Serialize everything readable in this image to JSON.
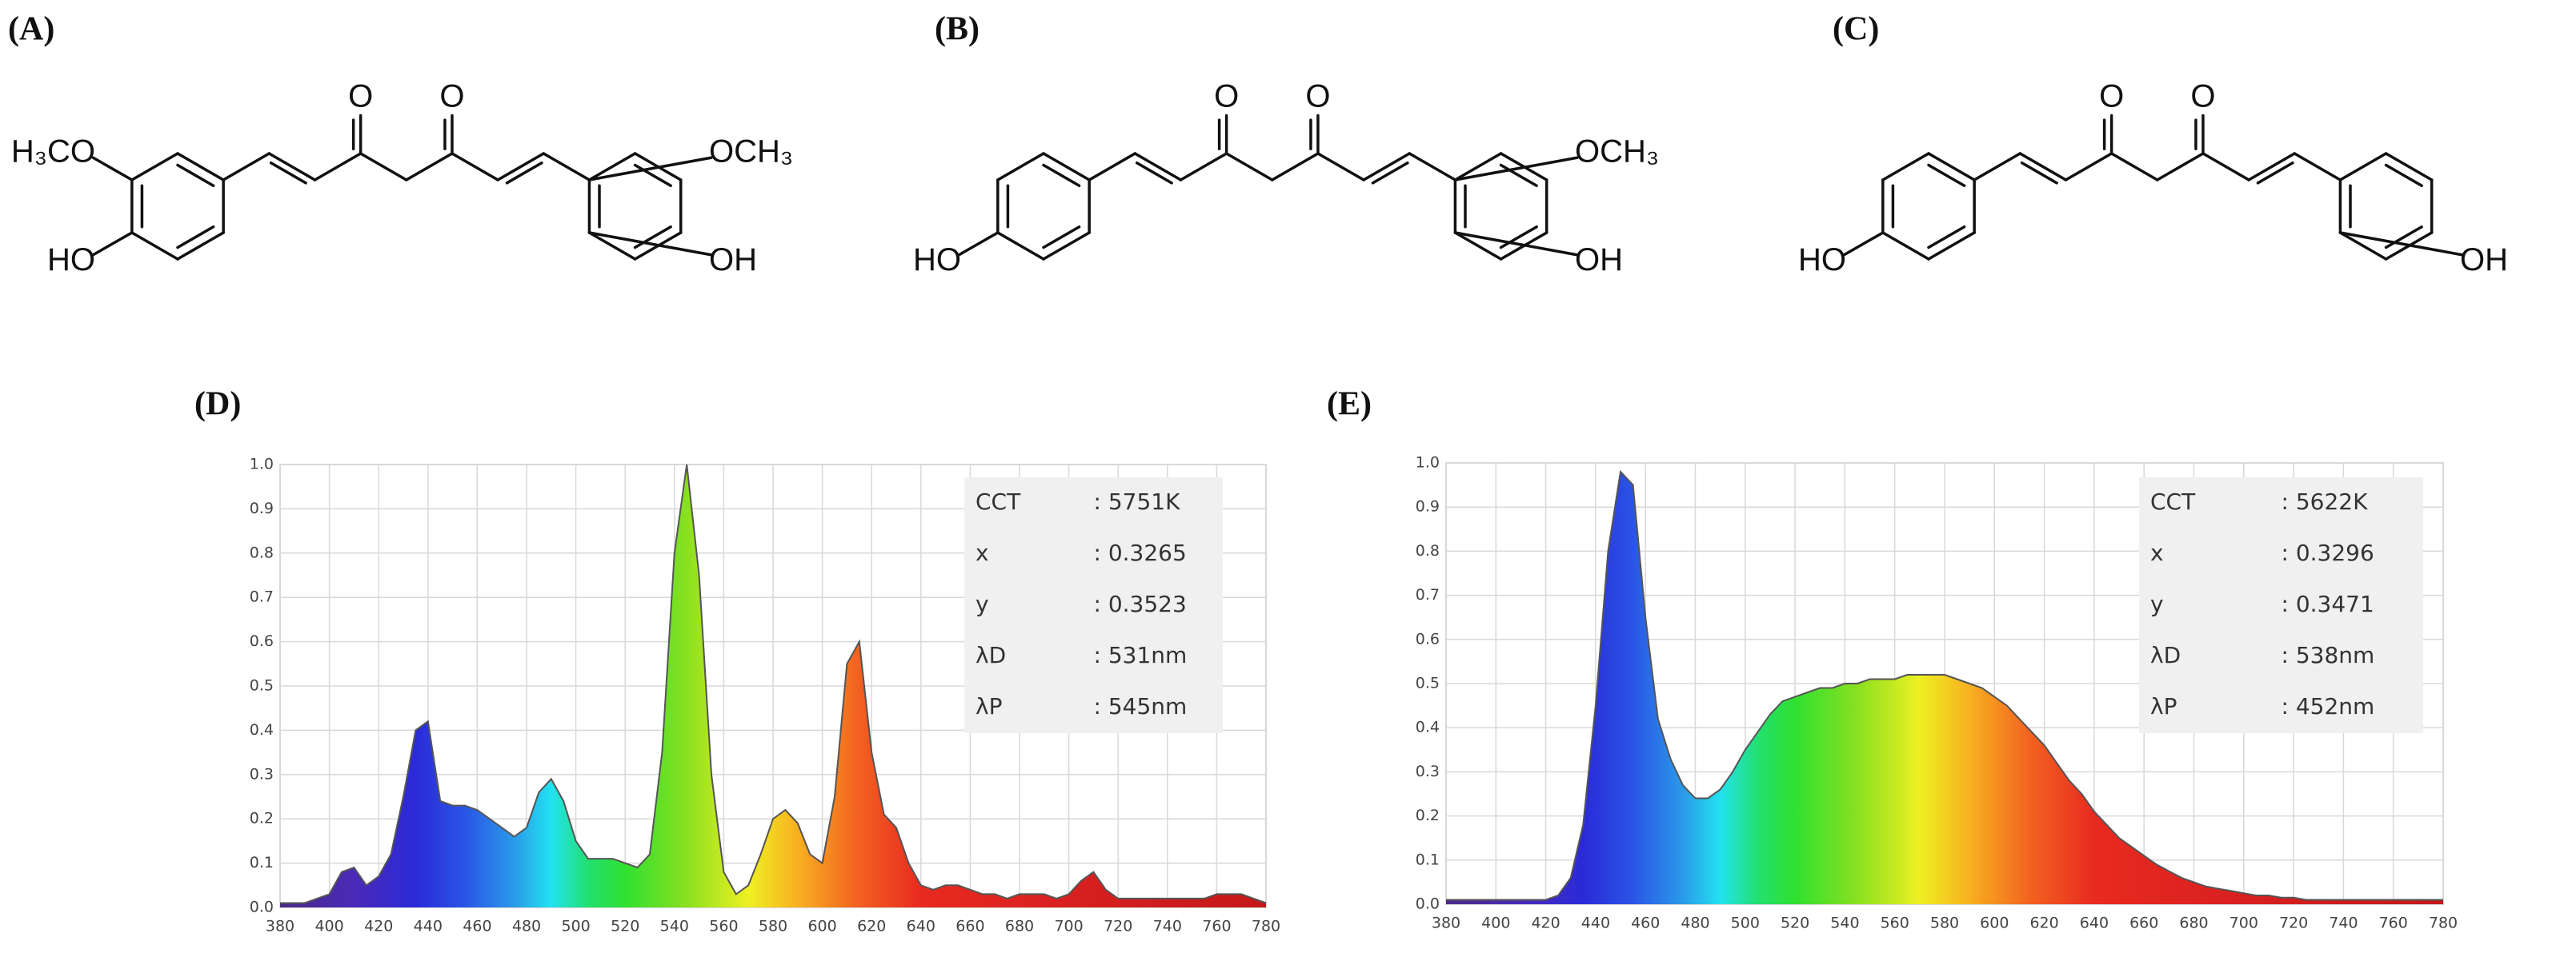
{
  "structures": [
    {
      "label": "(A)",
      "atoms": [
        "O",
        "O",
        "H₃CO",
        "HO",
        "OCH₃",
        "OH"
      ]
    },
    {
      "label": "(B)",
      "atoms": [
        "O",
        "O",
        "HO",
        "OCH₃",
        "OH"
      ]
    },
    {
      "label": "(C)",
      "atoms": [
        "O",
        "O",
        "HO",
        "OH"
      ]
    }
  ],
  "chart_data": [
    {
      "type": "area",
      "label": "(D)",
      "x": [
        380,
        385,
        390,
        395,
        400,
        405,
        410,
        415,
        420,
        425,
        430,
        435,
        440,
        445,
        450,
        455,
        460,
        465,
        470,
        475,
        480,
        485,
        490,
        495,
        500,
        505,
        510,
        515,
        520,
        525,
        530,
        535,
        540,
        545,
        550,
        555,
        560,
        565,
        570,
        575,
        580,
        585,
        590,
        595,
        600,
        605,
        610,
        615,
        620,
        625,
        630,
        635,
        640,
        645,
        650,
        655,
        660,
        665,
        670,
        675,
        680,
        685,
        690,
        695,
        700,
        705,
        710,
        715,
        720,
        725,
        730,
        735,
        740,
        745,
        750,
        755,
        760,
        765,
        770,
        775,
        780
      ],
      "values": [
        0.01,
        0.01,
        0.01,
        0.02,
        0.03,
        0.08,
        0.09,
        0.05,
        0.07,
        0.12,
        0.25,
        0.4,
        0.42,
        0.24,
        0.23,
        0.23,
        0.22,
        0.2,
        0.18,
        0.16,
        0.18,
        0.26,
        0.29,
        0.24,
        0.15,
        0.11,
        0.11,
        0.11,
        0.1,
        0.09,
        0.12,
        0.35,
        0.8,
        1.0,
        0.75,
        0.3,
        0.08,
        0.03,
        0.05,
        0.12,
        0.2,
        0.22,
        0.19,
        0.12,
        0.1,
        0.25,
        0.55,
        0.6,
        0.35,
        0.21,
        0.18,
        0.1,
        0.05,
        0.04,
        0.05,
        0.05,
        0.04,
        0.03,
        0.03,
        0.02,
        0.03,
        0.03,
        0.03,
        0.02,
        0.03,
        0.06,
        0.08,
        0.04,
        0.02,
        0.02,
        0.02,
        0.02,
        0.02,
        0.02,
        0.02,
        0.02,
        0.03,
        0.03,
        0.03,
        0.02,
        0.01
      ],
      "xlim": [
        380,
        780
      ],
      "ylim": [
        0,
        1
      ],
      "xticks": [
        380,
        400,
        420,
        440,
        460,
        480,
        500,
        520,
        540,
        560,
        580,
        600,
        620,
        640,
        660,
        680,
        700,
        720,
        740,
        760,
        780
      ],
      "yticks": [
        {
          "value": 0,
          "label": "0.0"
        },
        0.1,
        0.2,
        0.3,
        0.4,
        0.5,
        0.6,
        0.7,
        0.8,
        0.9,
        {
          "value": 1,
          "label": "1.0"
        }
      ],
      "grid": true,
      "color": "#555555",
      "info": [
        [
          "CCT",
          ": 5751K"
        ],
        [
          "x",
          ": 0.3265"
        ],
        [
          "y",
          ": 0.3523"
        ],
        [
          "λD",
          ": 531nm"
        ],
        [
          "λP",
          ": 545nm"
        ]
      ]
    },
    {
      "type": "area",
      "label": "(E)",
      "x": [
        380,
        385,
        390,
        395,
        400,
        405,
        410,
        415,
        420,
        425,
        430,
        435,
        440,
        445,
        450,
        455,
        460,
        465,
        470,
        475,
        480,
        485,
        490,
        495,
        500,
        505,
        510,
        515,
        520,
        525,
        530,
        535,
        540,
        545,
        550,
        555,
        560,
        565,
        570,
        575,
        580,
        585,
        590,
        595,
        600,
        605,
        610,
        615,
        620,
        625,
        630,
        635,
        640,
        645,
        650,
        655,
        660,
        665,
        670,
        675,
        680,
        685,
        690,
        695,
        700,
        705,
        710,
        715,
        720,
        725,
        730,
        735,
        740,
        745,
        750,
        755,
        760,
        765,
        770,
        775,
        780
      ],
      "values": [
        0.01,
        0.01,
        0.01,
        0.01,
        0.01,
        0.01,
        0.01,
        0.01,
        0.01,
        0.02,
        0.06,
        0.18,
        0.45,
        0.8,
        0.98,
        0.95,
        0.65,
        0.42,
        0.33,
        0.27,
        0.24,
        0.24,
        0.26,
        0.3,
        0.35,
        0.39,
        0.43,
        0.46,
        0.47,
        0.48,
        0.49,
        0.49,
        0.5,
        0.5,
        0.51,
        0.51,
        0.51,
        0.52,
        0.52,
        0.52,
        0.52,
        0.51,
        0.5,
        0.49,
        0.47,
        0.45,
        0.42,
        0.39,
        0.36,
        0.32,
        0.28,
        0.25,
        0.21,
        0.18,
        0.15,
        0.13,
        0.11,
        0.09,
        0.075,
        0.06,
        0.05,
        0.04,
        0.035,
        0.03,
        0.025,
        0.02,
        0.02,
        0.015,
        0.015,
        0.01,
        0.01,
        0.01,
        0.01,
        0.01,
        0.01,
        0.01,
        0.01,
        0.01,
        0.01,
        0.01,
        0.01
      ],
      "xlim": [
        380,
        780
      ],
      "ylim": [
        0,
        1
      ],
      "xticks": [
        380,
        400,
        420,
        440,
        460,
        480,
        500,
        520,
        540,
        560,
        580,
        600,
        620,
        640,
        660,
        680,
        700,
        720,
        740,
        760,
        780
      ],
      "yticks": [
        {
          "value": 0,
          "label": "0.0"
        },
        0.1,
        0.2,
        0.3,
        0.4,
        0.5,
        0.6,
        0.7,
        0.8,
        0.9,
        {
          "value": 1,
          "label": "1.0"
        }
      ],
      "grid": true,
      "color": "#555555",
      "info": [
        [
          "CCT",
          ": 5622K"
        ],
        [
          "x",
          ": 0.3296"
        ],
        [
          "y",
          ": 0.3471"
        ],
        [
          "λD",
          ": 538nm"
        ],
        [
          "λP",
          ": 452nm"
        ]
      ]
    }
  ]
}
